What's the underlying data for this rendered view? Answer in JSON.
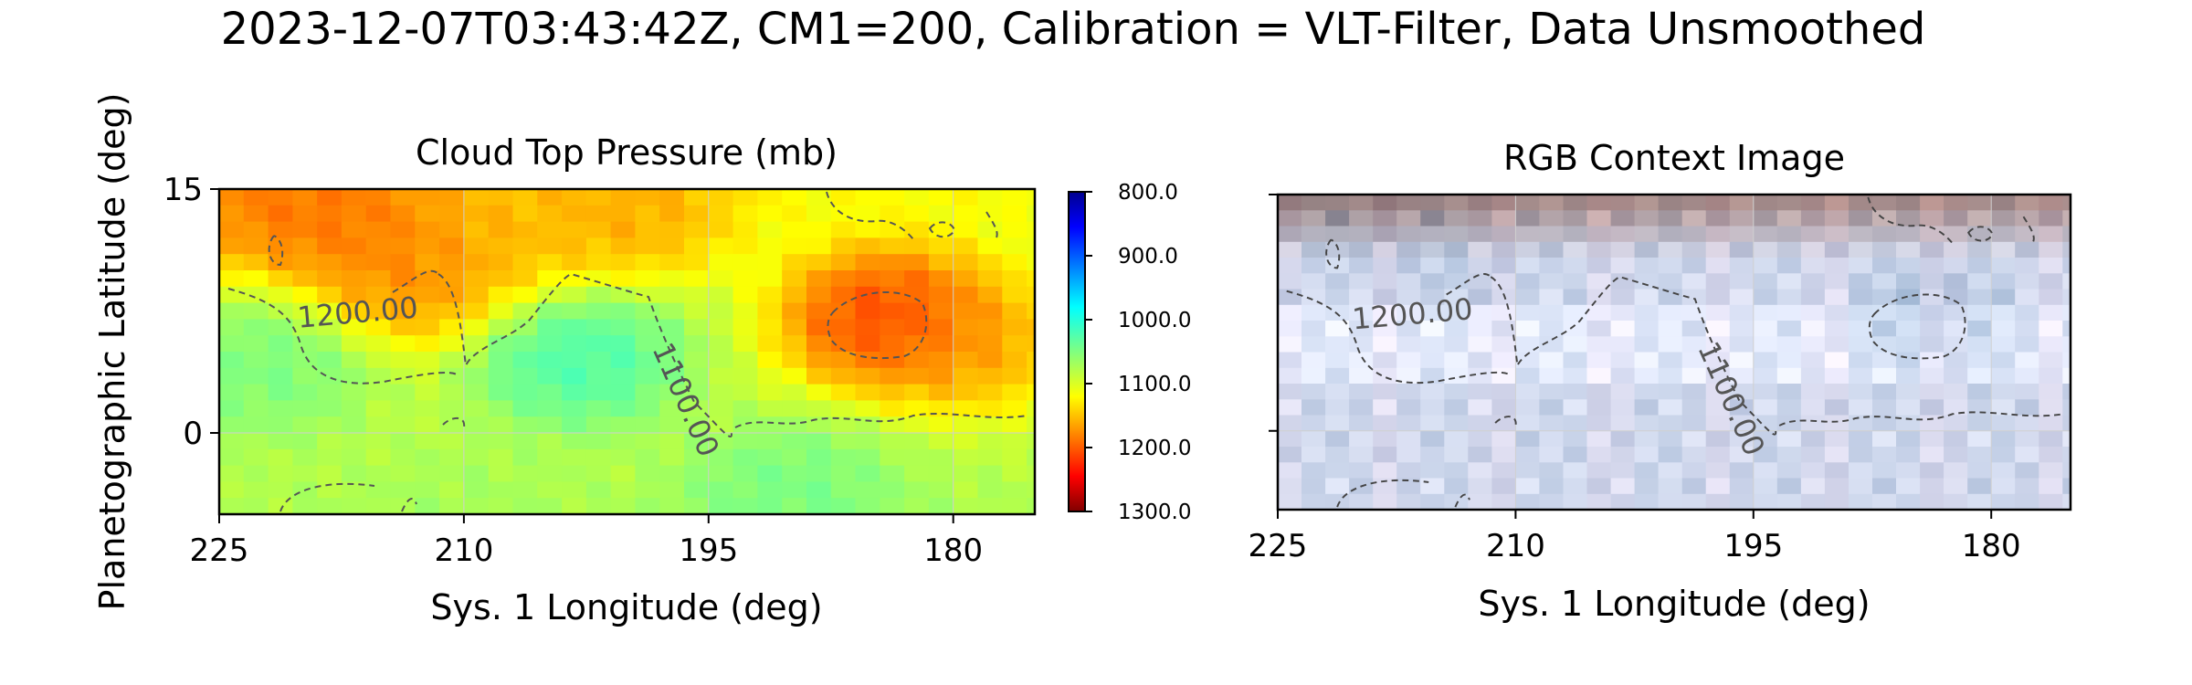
{
  "title": "2023-12-07T03:43:42Z, CM1=200, Calibration = VLT-Filter, Data Unsmoothed",
  "ylabel": "Planetographic Latitude (deg)",
  "colors": {
    "grid": "#d0d0d0",
    "contour": "#555555",
    "axes": "#000000"
  },
  "chart_data": [
    {
      "type": "heatmap",
      "title": "Cloud Top Pressure (mb)",
      "xlabel": "Sys. 1 Longitude (deg)",
      "ylabel": "Planetographic Latitude (deg)",
      "xlim": [
        225,
        175
      ],
      "ylim": [
        -5,
        15
      ],
      "xticks": [
        225,
        210,
        195,
        180
      ],
      "yticks": [
        0,
        15
      ],
      "grid": true,
      "colormap": "jet_r",
      "colorbar": {
        "range": [
          800,
          1300
        ],
        "inverted": true,
        "ticks": [
          "800.0",
          "900.0",
          "1000.0",
          "1100.0",
          "1200.0",
          "1300.0"
        ]
      },
      "features": [
        {
          "lon": 216,
          "lat": 13.0,
          "value": 1195
        },
        {
          "lon": 221,
          "lat": 14.0,
          "value": 1200
        },
        {
          "lon": 213,
          "lat": 9.5,
          "value": 1190
        },
        {
          "lon": 208,
          "lat": 12.5,
          "value": 1160
        },
        {
          "lon": 200,
          "lat": 13.5,
          "value": 1170
        },
        {
          "lon": 184,
          "lat": 7.0,
          "value": 1240
        },
        {
          "lon": 179,
          "lat": 5.5,
          "value": 1175
        },
        {
          "lon": 203,
          "lat": 4.5,
          "value": 1010
        },
        {
          "lon": 222,
          "lat": 4.0,
          "value": 1040
        },
        {
          "lon": 190,
          "lat": -3.5,
          "value": 1040
        },
        {
          "lon": 210,
          "lat": -4.5,
          "value": 1070
        }
      ],
      "contour_labels": [
        {
          "text": "1200.00",
          "lon": 216.5,
          "lat": 7.3,
          "rotation": -5
        },
        {
          "text": "1100.00",
          "lon": 196.5,
          "lat": 2.0,
          "rotation": 66
        }
      ]
    },
    {
      "type": "heatmap",
      "title": "RGB Context Image",
      "xlabel": "Sys. 1 Longitude (deg)",
      "xlim": [
        225,
        175
      ],
      "ylim": [
        -5,
        15
      ],
      "xticks": [
        225,
        210,
        195,
        180
      ],
      "yticks": [
        0,
        15
      ],
      "show_ytick_labels": false,
      "grid": true,
      "contour_labels": [
        {
          "text": "1200.00",
          "lon": 216.5,
          "lat": 7.3,
          "rotation": -5
        },
        {
          "text": "1100.00",
          "lon": 196.5,
          "lat": 2.0,
          "rotation": 66
        }
      ]
    }
  ]
}
